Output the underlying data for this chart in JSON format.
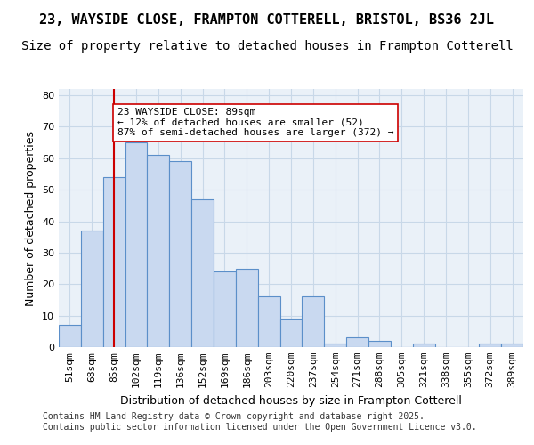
{
  "title1": "23, WAYSIDE CLOSE, FRAMPTON COTTERELL, BRISTOL, BS36 2JL",
  "title2": "Size of property relative to detached houses in Frampton Cotterell",
  "xlabel": "Distribution of detached houses by size in Frampton Cotterell",
  "ylabel": "Number of detached properties",
  "categories": [
    "51sqm",
    "68sqm",
    "85sqm",
    "102sqm",
    "119sqm",
    "136sqm",
    "152sqm",
    "169sqm",
    "186sqm",
    "203sqm",
    "220sqm",
    "237sqm",
    "254sqm",
    "271sqm",
    "288sqm",
    "305sqm",
    "321sqm",
    "338sqm",
    "355sqm",
    "372sqm",
    "389sqm"
  ],
  "values": [
    7,
    37,
    54,
    65,
    61,
    59,
    47,
    24,
    25,
    16,
    9,
    16,
    1,
    3,
    2,
    0,
    1,
    0,
    0,
    1,
    1
  ],
  "bar_color": "#c9d9f0",
  "bar_edge_color": "#5b8fc9",
  "vline_x": 2,
  "vline_color": "#cc0000",
  "annotation_text": "23 WAYSIDE CLOSE: 89sqm\n← 12% of detached houses are smaller (52)\n87% of semi-detached houses are larger (372) →",
  "annotation_box_color": "#ffffff",
  "annotation_box_edge": "#cc0000",
  "ylim": [
    0,
    82
  ],
  "yticks": [
    0,
    10,
    20,
    30,
    40,
    50,
    60,
    70,
    80
  ],
  "grid_color": "#c8d8e8",
  "bg_color": "#eaf1f8",
  "footer": "Contains HM Land Registry data © Crown copyright and database right 2025.\nContains public sector information licensed under the Open Government Licence v3.0.",
  "title1_fontsize": 11,
  "title2_fontsize": 10,
  "xlabel_fontsize": 9,
  "ylabel_fontsize": 9,
  "tick_fontsize": 8,
  "annotation_fontsize": 8,
  "footer_fontsize": 7
}
